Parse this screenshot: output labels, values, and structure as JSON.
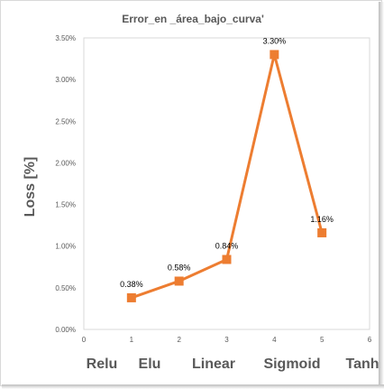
{
  "chart_data": {
    "type": "scatter",
    "title": "Error_en _área_bajo_curva'",
    "ylabel": "Loss [%]",
    "xlabel": "",
    "x": [
      1,
      2,
      3,
      4,
      5
    ],
    "values": [
      0.0038,
      0.0058,
      0.0084,
      0.033,
      0.0116
    ],
    "data_labels": [
      "0.38%",
      "0.58%",
      "0.84%",
      "3.30%",
      "1.16%"
    ],
    "xlim": [
      0,
      6
    ],
    "ylim": [
      0,
      0.035
    ],
    "x_ticks": [
      "0",
      "1",
      "2",
      "3",
      "4",
      "5",
      "6"
    ],
    "y_ticks": [
      "0.00%",
      "0.50%",
      "1.00%",
      "1.50%",
      "2.00%",
      "2.50%",
      "3.00%",
      "3.50%"
    ],
    "category_labels": [
      "Relu",
      "Elu",
      "Linear",
      "Sigmoid",
      "Tanh"
    ],
    "series_color": "#ed7d31",
    "grid": false,
    "legend": "none"
  }
}
